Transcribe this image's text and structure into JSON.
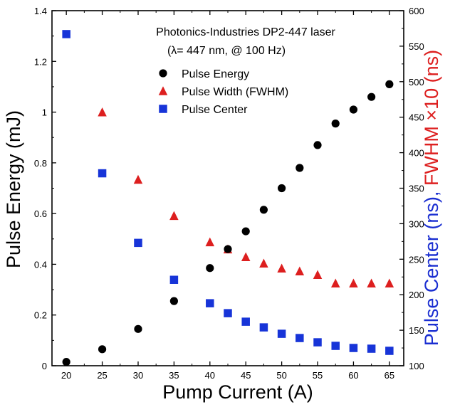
{
  "chart_data": {
    "type": "scatter",
    "annotation_lines": [
      "Photonics-Industries DP2-447 laser",
      "(λ= 447 nm, @ 100 Hz)"
    ],
    "xlabel": "Pump Current (A)",
    "ylabel_left": "Pulse Energy (mJ)",
    "ylabel_right_part1": "Pulse Center (ns), ",
    "ylabel_right_part2": "FWHM ×10 (ns)",
    "xlim": [
      18,
      67
    ],
    "ylim_left": [
      0,
      1.4
    ],
    "ylim_right": [
      100,
      600
    ],
    "x_ticks": [
      "20",
      "25",
      "30",
      "35",
      "40",
      "45",
      "50",
      "55",
      "60",
      "65"
    ],
    "y_ticks_left": [
      "0",
      "0.2",
      "0.4",
      "0.6",
      "0.8",
      "1",
      "1.2",
      "1.4"
    ],
    "y_ticks_right": [
      "100",
      "150",
      "200",
      "250",
      "300",
      "350",
      "400",
      "450",
      "500",
      "550",
      "600"
    ],
    "legend_position": "top-right",
    "grid": false,
    "series": [
      {
        "name": "Pulse Energy",
        "marker": "circle",
        "color": "#000000",
        "axis": "left",
        "points": [
          [
            20,
            0.015
          ],
          [
            25,
            0.065
          ],
          [
            30,
            0.145
          ],
          [
            35,
            0.255
          ],
          [
            40,
            0.385
          ],
          [
            42.5,
            0.46
          ],
          [
            45,
            0.53
          ],
          [
            47.5,
            0.615
          ],
          [
            50,
            0.7
          ],
          [
            52.5,
            0.78
          ],
          [
            55,
            0.87
          ],
          [
            57.5,
            0.955
          ],
          [
            60,
            1.01
          ],
          [
            62.5,
            1.06
          ],
          [
            65,
            1.11
          ]
        ]
      },
      {
        "name": "Pulse Width (FWHM)",
        "marker": "triangle",
        "color": "#dd1f1f",
        "axis": "right",
        "points": [
          [
            25,
            457
          ],
          [
            30,
            362
          ],
          [
            35,
            311
          ],
          [
            40,
            274
          ],
          [
            42.5,
            264
          ],
          [
            45,
            253
          ],
          [
            47.5,
            244
          ],
          [
            50,
            237
          ],
          [
            52.5,
            233
          ],
          [
            55,
            228
          ],
          [
            57.5,
            216
          ],
          [
            60,
            216
          ],
          [
            62.5,
            216
          ],
          [
            65,
            216
          ]
        ]
      },
      {
        "name": "Pulse Center",
        "marker": "square",
        "color": "#1734d8",
        "axis": "right",
        "points": [
          [
            20,
            567
          ],
          [
            25,
            371
          ],
          [
            30,
            273
          ],
          [
            35,
            221
          ],
          [
            40,
            188
          ],
          [
            42.5,
            174
          ],
          [
            45,
            162
          ],
          [
            47.5,
            154
          ],
          [
            50,
            145
          ],
          [
            52.5,
            139
          ],
          [
            55,
            133
          ],
          [
            57.5,
            128
          ],
          [
            60,
            125
          ],
          [
            62.5,
            124
          ],
          [
            65,
            121
          ]
        ]
      }
    ]
  }
}
